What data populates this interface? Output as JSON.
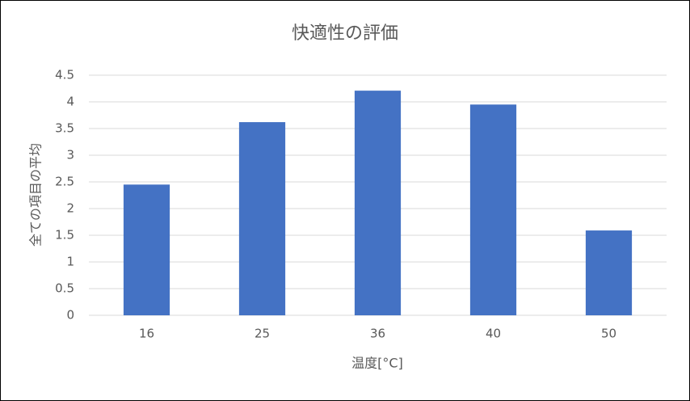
{
  "chart_data": {
    "type": "bar",
    "title": "快適性の評価",
    "x_label": "温度[°C]",
    "y_label": "全ての項目の平均",
    "categories": [
      "16",
      "25",
      "36",
      "40",
      "50"
    ],
    "values": [
      2.45,
      3.62,
      4.21,
      3.95,
      1.59
    ],
    "color": "#4472c4",
    "ylim": [
      0,
      4.5
    ],
    "yticks": [
      0,
      0.5,
      1,
      1.5,
      2,
      2.5,
      3,
      3.5,
      4,
      4.5
    ],
    "grid": true
  }
}
